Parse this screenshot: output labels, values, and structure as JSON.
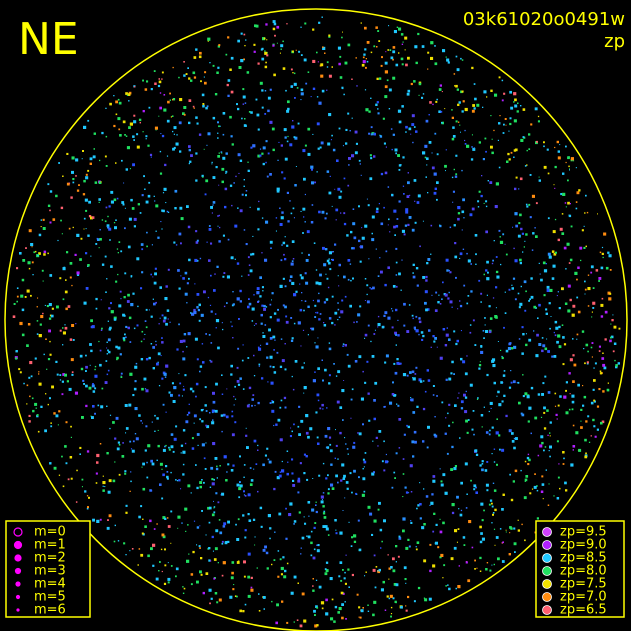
{
  "header": {
    "direction": "NE",
    "frame_id": "03k61020o0491w",
    "subtitle": "zp"
  },
  "magnitude_legend": {
    "color": "#ff00ff",
    "items": [
      "m=0",
      "m=1",
      "m=2",
      "m=3",
      "m=4",
      "m=5",
      "m=6"
    ]
  },
  "zp_legend": {
    "items": [
      {
        "label": "zp=9.5",
        "color": "#d040ff"
      },
      {
        "label": "zp=9.0",
        "color": "#b020ff"
      },
      {
        "label": "zp=8.5",
        "color": "#20c8ff"
      },
      {
        "label": "zp=8.0",
        "color": "#20e060"
      },
      {
        "label": "zp=7.5",
        "color": "#f0e000"
      },
      {
        "label": "zp=7.0",
        "color": "#ff8c10"
      },
      {
        "label": "zp=6.5",
        "color": "#ff6070"
      }
    ]
  },
  "frame_color": "#ffff00"
}
